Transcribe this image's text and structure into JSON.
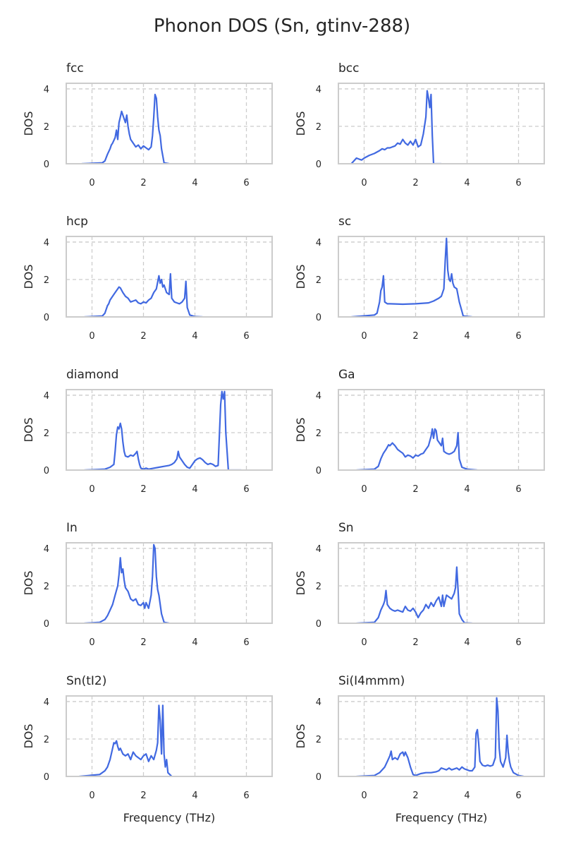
{
  "chart_data": {
    "type": "line",
    "title": "Phonon DOS (Sn, gtinv-288)",
    "xlim": [
      -1,
      7
    ],
    "ylim": [
      0,
      4.3
    ],
    "xticks": [
      0,
      2,
      4,
      6
    ],
    "yticks": [
      0,
      2,
      4
    ],
    "grid": true,
    "color": "#4169e1",
    "panels": [
      {
        "title": "fcc",
        "ylabel": "DOS",
        "xlabel": "",
        "x": [
          -0.4,
          0.4,
          0.5,
          0.6,
          0.7,
          0.75,
          0.8,
          0.9,
          0.95,
          1.0,
          1.05,
          1.1,
          1.15,
          1.2,
          1.25,
          1.3,
          1.35,
          1.4,
          1.45,
          1.5,
          1.6,
          1.7,
          1.8,
          1.9,
          2.0,
          2.1,
          2.2,
          2.3,
          2.35,
          2.4,
          2.45,
          2.5,
          2.55,
          2.6,
          2.65,
          2.7,
          2.8,
          3.0
        ],
        "y": [
          0,
          0.05,
          0.15,
          0.5,
          0.8,
          1.0,
          1.1,
          1.4,
          1.8,
          1.3,
          2.2,
          2.5,
          2.8,
          2.6,
          2.4,
          2.2,
          2.6,
          2.0,
          1.6,
          1.3,
          1.1,
          0.9,
          1.0,
          0.8,
          0.95,
          0.85,
          0.75,
          0.9,
          1.5,
          2.5,
          3.7,
          3.5,
          2.5,
          1.8,
          1.5,
          0.8,
          0.05,
          0
        ]
      },
      {
        "title": "bcc",
        "ylabel": "DOS",
        "xlabel": "",
        "x": [
          -0.5,
          -0.3,
          -0.2,
          -0.1,
          0.0,
          0.2,
          0.4,
          0.6,
          0.7,
          0.8,
          0.9,
          1.0,
          1.1,
          1.2,
          1.3,
          1.4,
          1.5,
          1.6,
          1.7,
          1.8,
          1.9,
          2.0,
          2.1,
          2.2,
          2.3,
          2.4,
          2.45,
          2.5,
          2.55,
          2.6,
          2.65,
          2.7,
          3.0
        ],
        "y": [
          0,
          0.3,
          0.25,
          0.2,
          0.3,
          0.45,
          0.55,
          0.7,
          0.8,
          0.75,
          0.85,
          0.85,
          0.9,
          0.95,
          1.1,
          1.05,
          1.3,
          1.1,
          1.0,
          1.2,
          1.0,
          1.3,
          0.9,
          1.0,
          1.6,
          2.5,
          3.9,
          3.5,
          3.0,
          3.7,
          1.5,
          0,
          0
        ]
      },
      {
        "title": "hcp",
        "ylabel": "DOS",
        "xlabel": "",
        "x": [
          -0.3,
          0.4,
          0.5,
          0.6,
          0.65,
          0.7,
          0.8,
          0.9,
          1.0,
          1.05,
          1.1,
          1.2,
          1.3,
          1.4,
          1.5,
          1.6,
          1.7,
          1.8,
          1.9,
          2.0,
          2.1,
          2.2,
          2.3,
          2.4,
          2.5,
          2.6,
          2.65,
          2.7,
          2.75,
          2.8,
          2.9,
          3.0,
          3.05,
          3.1,
          3.2,
          3.3,
          3.4,
          3.5,
          3.6,
          3.65,
          3.7,
          3.8,
          4.0,
          4.3
        ],
        "y": [
          0,
          0.05,
          0.2,
          0.6,
          0.7,
          0.9,
          1.1,
          1.3,
          1.5,
          1.6,
          1.55,
          1.3,
          1.1,
          1.0,
          0.8,
          0.85,
          0.9,
          0.75,
          0.7,
          0.8,
          0.75,
          0.9,
          1.0,
          1.3,
          1.5,
          2.2,
          1.8,
          2.0,
          1.6,
          1.7,
          1.3,
          1.2,
          2.3,
          1.0,
          0.8,
          0.75,
          0.7,
          0.8,
          1.0,
          1.9,
          0.5,
          0.1,
          0.02,
          0
        ]
      },
      {
        "title": "sc",
        "ylabel": "DOS",
        "xlabel": "",
        "x": [
          -0.5,
          0.4,
          0.5,
          0.6,
          0.65,
          0.7,
          0.75,
          0.8,
          0.9,
          1.0,
          1.5,
          2.0,
          2.5,
          2.7,
          2.9,
          3.0,
          3.1,
          3.15,
          3.2,
          3.25,
          3.3,
          3.35,
          3.4,
          3.45,
          3.5,
          3.6,
          3.7,
          3.8,
          3.85,
          4.2
        ],
        "y": [
          0,
          0.1,
          0.2,
          0.8,
          1.4,
          1.6,
          2.2,
          0.8,
          0.7,
          0.7,
          0.68,
          0.7,
          0.75,
          0.85,
          1.0,
          1.1,
          1.5,
          3.0,
          4.2,
          2.5,
          2.0,
          1.9,
          2.3,
          1.8,
          1.6,
          1.5,
          0.8,
          0.3,
          0.05,
          0
        ]
      },
      {
        "title": "diamond",
        "ylabel": "DOS",
        "xlabel": "",
        "x": [
          -0.3,
          0.5,
          0.7,
          0.85,
          0.9,
          0.95,
          1.0,
          1.05,
          1.1,
          1.15,
          1.2,
          1.25,
          1.3,
          1.4,
          1.5,
          1.6,
          1.7,
          1.75,
          1.8,
          1.85,
          1.9,
          2.0,
          2.1,
          2.2,
          2.4,
          2.6,
          2.8,
          3.0,
          3.1,
          3.2,
          3.3,
          3.35,
          3.4,
          3.5,
          3.6,
          3.7,
          3.8,
          3.9,
          4.0,
          4.1,
          4.2,
          4.3,
          4.4,
          4.5,
          4.6,
          4.7,
          4.8,
          4.9,
          5.0,
          5.05,
          5.1,
          5.15,
          5.2,
          5.3,
          5.8
        ],
        "y": [
          0,
          0.05,
          0.15,
          0.3,
          1.0,
          1.9,
          2.3,
          2.2,
          2.5,
          2.2,
          1.5,
          1.0,
          0.75,
          0.7,
          0.8,
          0.75,
          0.9,
          1.0,
          0.6,
          0.3,
          0.1,
          0.05,
          0.1,
          0.05,
          0.1,
          0.15,
          0.2,
          0.25,
          0.3,
          0.4,
          0.6,
          1.0,
          0.7,
          0.5,
          0.3,
          0.15,
          0.1,
          0.3,
          0.5,
          0.6,
          0.65,
          0.55,
          0.4,
          0.3,
          0.35,
          0.3,
          0.2,
          0.25,
          3.5,
          4.2,
          3.8,
          4.2,
          2.0,
          0,
          0
        ]
      },
      {
        "title": "Ga",
        "ylabel": "DOS",
        "xlabel": "",
        "x": [
          -0.3,
          0.4,
          0.55,
          0.65,
          0.75,
          0.85,
          0.95,
          1.0,
          1.1,
          1.2,
          1.3,
          1.4,
          1.5,
          1.6,
          1.7,
          1.8,
          1.9,
          2.0,
          2.1,
          2.2,
          2.3,
          2.4,
          2.5,
          2.6,
          2.65,
          2.7,
          2.75,
          2.8,
          2.85,
          2.9,
          3.0,
          3.05,
          3.1,
          3.2,
          3.3,
          3.4,
          3.5,
          3.6,
          3.65,
          3.7,
          3.8,
          4.0,
          4.4
        ],
        "y": [
          0,
          0.05,
          0.2,
          0.6,
          0.9,
          1.1,
          1.35,
          1.3,
          1.45,
          1.3,
          1.1,
          1.0,
          0.9,
          0.7,
          0.8,
          0.75,
          0.65,
          0.8,
          0.75,
          0.85,
          0.9,
          1.1,
          1.3,
          1.8,
          2.2,
          1.7,
          2.2,
          2.1,
          1.6,
          1.5,
          1.3,
          1.7,
          1.0,
          0.9,
          0.85,
          0.9,
          1.0,
          1.3,
          2.0,
          0.6,
          0.15,
          0.05,
          0
        ]
      },
      {
        "title": "In",
        "ylabel": "DOS",
        "xlabel": "",
        "x": [
          -0.3,
          0.3,
          0.5,
          0.6,
          0.7,
          0.8,
          0.9,
          1.0,
          1.05,
          1.1,
          1.15,
          1.2,
          1.25,
          1.3,
          1.4,
          1.5,
          1.6,
          1.7,
          1.8,
          1.9,
          2.0,
          2.05,
          2.1,
          2.2,
          2.3,
          2.35,
          2.4,
          2.45,
          2.5,
          2.55,
          2.6,
          2.7,
          2.8,
          3.0
        ],
        "y": [
          0,
          0.05,
          0.2,
          0.4,
          0.7,
          1.0,
          1.5,
          2.0,
          2.6,
          3.5,
          2.7,
          2.9,
          2.3,
          1.9,
          1.7,
          1.3,
          1.2,
          1.3,
          1.0,
          0.95,
          1.1,
          0.8,
          1.1,
          0.8,
          1.5,
          2.5,
          4.2,
          4.0,
          2.5,
          1.8,
          1.5,
          0.5,
          0.05,
          0
        ]
      },
      {
        "title": "Sn",
        "ylabel": "DOS",
        "xlabel": "",
        "x": [
          -0.3,
          0.4,
          0.55,
          0.65,
          0.75,
          0.8,
          0.85,
          0.9,
          0.95,
          1.0,
          1.1,
          1.2,
          1.3,
          1.4,
          1.5,
          1.6,
          1.7,
          1.8,
          1.9,
          2.0,
          2.1,
          2.2,
          2.3,
          2.4,
          2.5,
          2.6,
          2.7,
          2.8,
          2.9,
          3.0,
          3.05,
          3.1,
          3.2,
          3.3,
          3.4,
          3.5,
          3.55,
          3.6,
          3.65,
          3.7,
          3.8,
          3.9,
          4.2
        ],
        "y": [
          0,
          0.05,
          0.3,
          0.7,
          1.0,
          1.2,
          1.75,
          1.0,
          0.9,
          0.8,
          0.7,
          0.65,
          0.7,
          0.65,
          0.6,
          0.9,
          0.7,
          0.65,
          0.8,
          0.6,
          0.3,
          0.55,
          0.7,
          1.0,
          0.8,
          1.1,
          0.9,
          1.2,
          1.4,
          0.9,
          1.5,
          0.9,
          1.5,
          1.4,
          1.3,
          1.6,
          1.9,
          3.0,
          1.8,
          0.5,
          0.2,
          0.02,
          0
        ]
      },
      {
        "title": "Sn(tI2)",
        "ylabel": "DOS",
        "xlabel": "Frequency (THz)",
        "x": [
          -0.5,
          0.3,
          0.5,
          0.6,
          0.7,
          0.8,
          0.85,
          0.9,
          0.95,
          1.0,
          1.05,
          1.1,
          1.2,
          1.3,
          1.4,
          1.5,
          1.6,
          1.7,
          1.8,
          1.9,
          2.0,
          2.1,
          2.2,
          2.3,
          2.4,
          2.5,
          2.55,
          2.6,
          2.65,
          2.7,
          2.75,
          2.8,
          2.85,
          2.9,
          2.95,
          3.1
        ],
        "y": [
          0,
          0.1,
          0.3,
          0.5,
          0.9,
          1.5,
          1.8,
          1.75,
          1.9,
          1.6,
          1.4,
          1.5,
          1.2,
          1.1,
          1.2,
          0.9,
          1.3,
          1.1,
          1.0,
          0.9,
          1.1,
          1.2,
          0.8,
          1.1,
          0.9,
          1.4,
          1.8,
          3.8,
          3.0,
          1.2,
          3.8,
          1.2,
          0.5,
          0.9,
          0.2,
          0
        ]
      },
      {
        "title": "Si(I4mmm)",
        "ylabel": "DOS",
        "xlabel": "Frequency (THz)",
        "x": [
          -0.3,
          0.4,
          0.6,
          0.8,
          0.9,
          1.0,
          1.05,
          1.1,
          1.2,
          1.3,
          1.4,
          1.5,
          1.55,
          1.6,
          1.7,
          1.8,
          1.9,
          2.0,
          2.2,
          2.4,
          2.6,
          2.8,
          2.9,
          3.0,
          3.1,
          3.2,
          3.3,
          3.4,
          3.5,
          3.6,
          3.7,
          3.8,
          3.9,
          4.0,
          4.1,
          4.2,
          4.3,
          4.35,
          4.4,
          4.45,
          4.5,
          4.6,
          4.7,
          4.8,
          4.9,
          5.0,
          5.1,
          5.15,
          5.2,
          5.25,
          5.3,
          5.4,
          5.5,
          5.55,
          5.6,
          5.65,
          5.7,
          5.8,
          6.0,
          6.2
        ],
        "y": [
          0,
          0.05,
          0.2,
          0.5,
          0.8,
          1.1,
          1.35,
          0.9,
          1.0,
          0.9,
          1.2,
          1.3,
          1.1,
          1.3,
          1.0,
          0.5,
          0.1,
          0.05,
          0.15,
          0.2,
          0.2,
          0.25,
          0.3,
          0.45,
          0.4,
          0.35,
          0.45,
          0.35,
          0.4,
          0.45,
          0.35,
          0.5,
          0.4,
          0.35,
          0.3,
          0.3,
          0.5,
          2.3,
          2.5,
          1.8,
          0.8,
          0.6,
          0.55,
          0.6,
          0.55,
          0.6,
          1.0,
          4.2,
          3.5,
          1.5,
          0.8,
          0.5,
          1.0,
          2.2,
          1.3,
          0.8,
          0.5,
          0.2,
          0.05,
          0
        ]
      }
    ]
  }
}
